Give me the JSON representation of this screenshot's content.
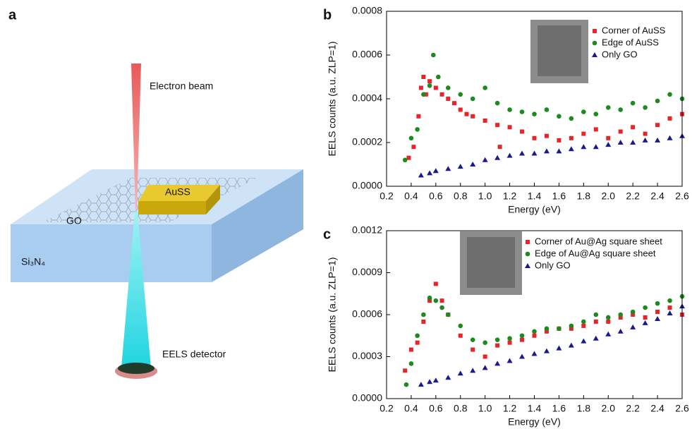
{
  "panel_a": {
    "label": "a",
    "beam": "Electron beam",
    "particle": "AuSS",
    "substrate_top": "GO",
    "substrate": "Si₃N₄",
    "detector": "EELS detector"
  },
  "chart_data": [
    {
      "type": "scatter",
      "label": "b",
      "xlabel": "Energy (eV)",
      "ylabel": "EELS counts (a.u. ZLP=1)",
      "xlim": [
        0.2,
        2.6
      ],
      "xticks": [
        0.2,
        0.4,
        0.6,
        0.8,
        {
          "value": 1,
          "label": "1.0"
        },
        1.2,
        1.4,
        1.6,
        1.8,
        {
          "value": 2,
          "label": "2.0"
        },
        2.2,
        2.4,
        2.6
      ],
      "ylim": [
        0,
        0.0008
      ],
      "yticks": [
        {
          "value": 0,
          "label": "0.0000"
        },
        0.0002,
        0.0004,
        0.0006,
        0.0008
      ],
      "series": [
        {
          "name": "Corner of AuSS",
          "color": "#e8232a",
          "marker": "square",
          "x": [
            0.38,
            0.42,
            0.46,
            0.48,
            0.5,
            0.52,
            0.55,
            0.6,
            0.65,
            0.7,
            0.75,
            0.8,
            0.85,
            0.9,
            1.0,
            1.1,
            1.12,
            1.2,
            1.3,
            1.4,
            1.5,
            1.6,
            1.7,
            1.8,
            1.9,
            2.0,
            2.1,
            2.2,
            2.3,
            2.4,
            2.5,
            2.6
          ],
          "values": [
            0.00013,
            0.00018,
            0.00032,
            0.00045,
            0.0005,
            0.00042,
            0.00048,
            0.00045,
            0.00042,
            0.0004,
            0.00038,
            0.00035,
            0.00033,
            0.00032,
            0.0003,
            0.00028,
            0.00018,
            0.00027,
            0.00025,
            0.00022,
            0.00023,
            0.00021,
            0.00022,
            0.00024,
            0.00026,
            0.00022,
            0.00025,
            0.00027,
            0.00024,
            0.00028,
            0.00031,
            0.00033
          ]
        },
        {
          "name": "Edge of AuSS",
          "color": "#1e8a1e",
          "marker": "circle",
          "x": [
            0.35,
            0.4,
            0.45,
            0.5,
            0.55,
            0.58,
            0.62,
            0.7,
            0.8,
            0.9,
            1.0,
            1.1,
            1.2,
            1.3,
            1.4,
            1.5,
            1.6,
            1.7,
            1.8,
            1.9,
            2.0,
            2.1,
            2.2,
            2.3,
            2.4,
            2.5,
            2.6
          ],
          "values": [
            0.00012,
            0.00022,
            0.00026,
            0.00042,
            0.00046,
            0.0006,
            0.0005,
            0.00045,
            0.00042,
            0.0004,
            0.00045,
            0.00038,
            0.00035,
            0.00034,
            0.00033,
            0.00035,
            0.00032,
            0.00031,
            0.00034,
            0.00033,
            0.00036,
            0.00035,
            0.00038,
            0.00036,
            0.00039,
            0.00042,
            0.0004
          ]
        },
        {
          "name": "Only GO",
          "color": "#1a1a8c",
          "marker": "triangle",
          "x": [
            0.48,
            0.55,
            0.6,
            0.7,
            0.8,
            0.9,
            1.0,
            1.1,
            1.2,
            1.3,
            1.4,
            1.5,
            1.6,
            1.7,
            1.8,
            1.9,
            2.0,
            2.1,
            2.2,
            2.3,
            2.4,
            2.5,
            2.6
          ],
          "values": [
            5e-05,
            6e-05,
            7e-05,
            8e-05,
            9e-05,
            0.0001,
            0.00012,
            0.00013,
            0.00014,
            0.00015,
            0.00015,
            0.00016,
            0.00016,
            0.00017,
            0.00018,
            0.00018,
            0.00019,
            0.0002,
            0.0002,
            0.00021,
            0.00021,
            0.00022,
            0.00023
          ]
        }
      ]
    },
    {
      "type": "scatter",
      "label": "c",
      "xlabel": "Energy (eV)",
      "ylabel": "EELS counts (a.u. ZLP=1)",
      "xlim": [
        0.2,
        2.6
      ],
      "xticks": [
        0.2,
        0.4,
        0.6,
        0.8,
        {
          "value": 1,
          "label": "1.0"
        },
        1.2,
        1.4,
        1.6,
        1.8,
        {
          "value": 2,
          "label": "2.0"
        },
        2.2,
        2.4,
        2.6
      ],
      "ylim": [
        0,
        0.0012
      ],
      "yticks": [
        {
          "value": 0,
          "label": "0.0000"
        },
        0.0003,
        0.0006,
        0.0009,
        0.0012
      ],
      "series": [
        {
          "name": "Corner of Au@Ag square sheet",
          "color": "#e8232a",
          "marker": "square",
          "x": [
            0.35,
            0.4,
            0.45,
            0.5,
            0.55,
            0.6,
            0.65,
            0.7,
            0.8,
            0.9,
            1.0,
            1.1,
            1.2,
            1.3,
            1.4,
            1.5,
            1.6,
            1.7,
            1.8,
            1.9,
            2.0,
            2.1,
            2.2,
            2.3,
            2.4,
            2.5,
            2.6
          ],
          "values": [
            0.0002,
            0.00035,
            0.0004,
            0.00055,
            0.0007,
            0.00082,
            0.0007,
            0.0006,
            0.00045,
            0.00035,
            0.0003,
            0.00038,
            0.0004,
            0.00042,
            0.00045,
            0.00048,
            0.0005,
            0.0005,
            0.00052,
            0.00055,
            0.00055,
            0.00058,
            0.0006,
            0.00058,
            0.00062,
            0.00065,
            0.0006
          ]
        },
        {
          "name": "Edge of Au@Ag square sheet",
          "color": "#1e8a1e",
          "marker": "circle",
          "x": [
            0.36,
            0.4,
            0.45,
            0.5,
            0.55,
            0.6,
            0.65,
            0.7,
            0.8,
            0.9,
            1.0,
            1.1,
            1.2,
            1.3,
            1.4,
            1.5,
            1.6,
            1.7,
            1.8,
            1.9,
            2.0,
            2.1,
            2.2,
            2.3,
            2.4,
            2.5,
            2.6
          ],
          "values": [
            0.0001,
            0.00025,
            0.00045,
            0.0006,
            0.00072,
            0.0007,
            0.00065,
            0.0006,
            0.00052,
            0.00042,
            0.0004,
            0.00042,
            0.00043,
            0.00045,
            0.00048,
            0.0005,
            0.0005,
            0.00052,
            0.00055,
            0.0006,
            0.00058,
            0.0006,
            0.00062,
            0.00065,
            0.00068,
            0.0007,
            0.00073
          ]
        },
        {
          "name": "Only GO",
          "color": "#1a1a8c",
          "marker": "triangle",
          "x": [
            0.48,
            0.55,
            0.6,
            0.7,
            0.8,
            0.9,
            1.0,
            1.1,
            1.2,
            1.3,
            1.4,
            1.5,
            1.6,
            1.7,
            1.8,
            1.9,
            2.0,
            2.1,
            2.2,
            2.3,
            2.4,
            2.5,
            2.6
          ],
          "values": [
            0.0001,
            0.00012,
            0.00013,
            0.00015,
            0.00018,
            0.0002,
            0.00022,
            0.00025,
            0.00027,
            0.0003,
            0.00032,
            0.00034,
            0.00036,
            0.00038,
            0.00041,
            0.00043,
            0.00046,
            0.00048,
            0.00051,
            0.00054,
            0.00057,
            0.00061,
            0.00066
          ]
        }
      ]
    }
  ]
}
